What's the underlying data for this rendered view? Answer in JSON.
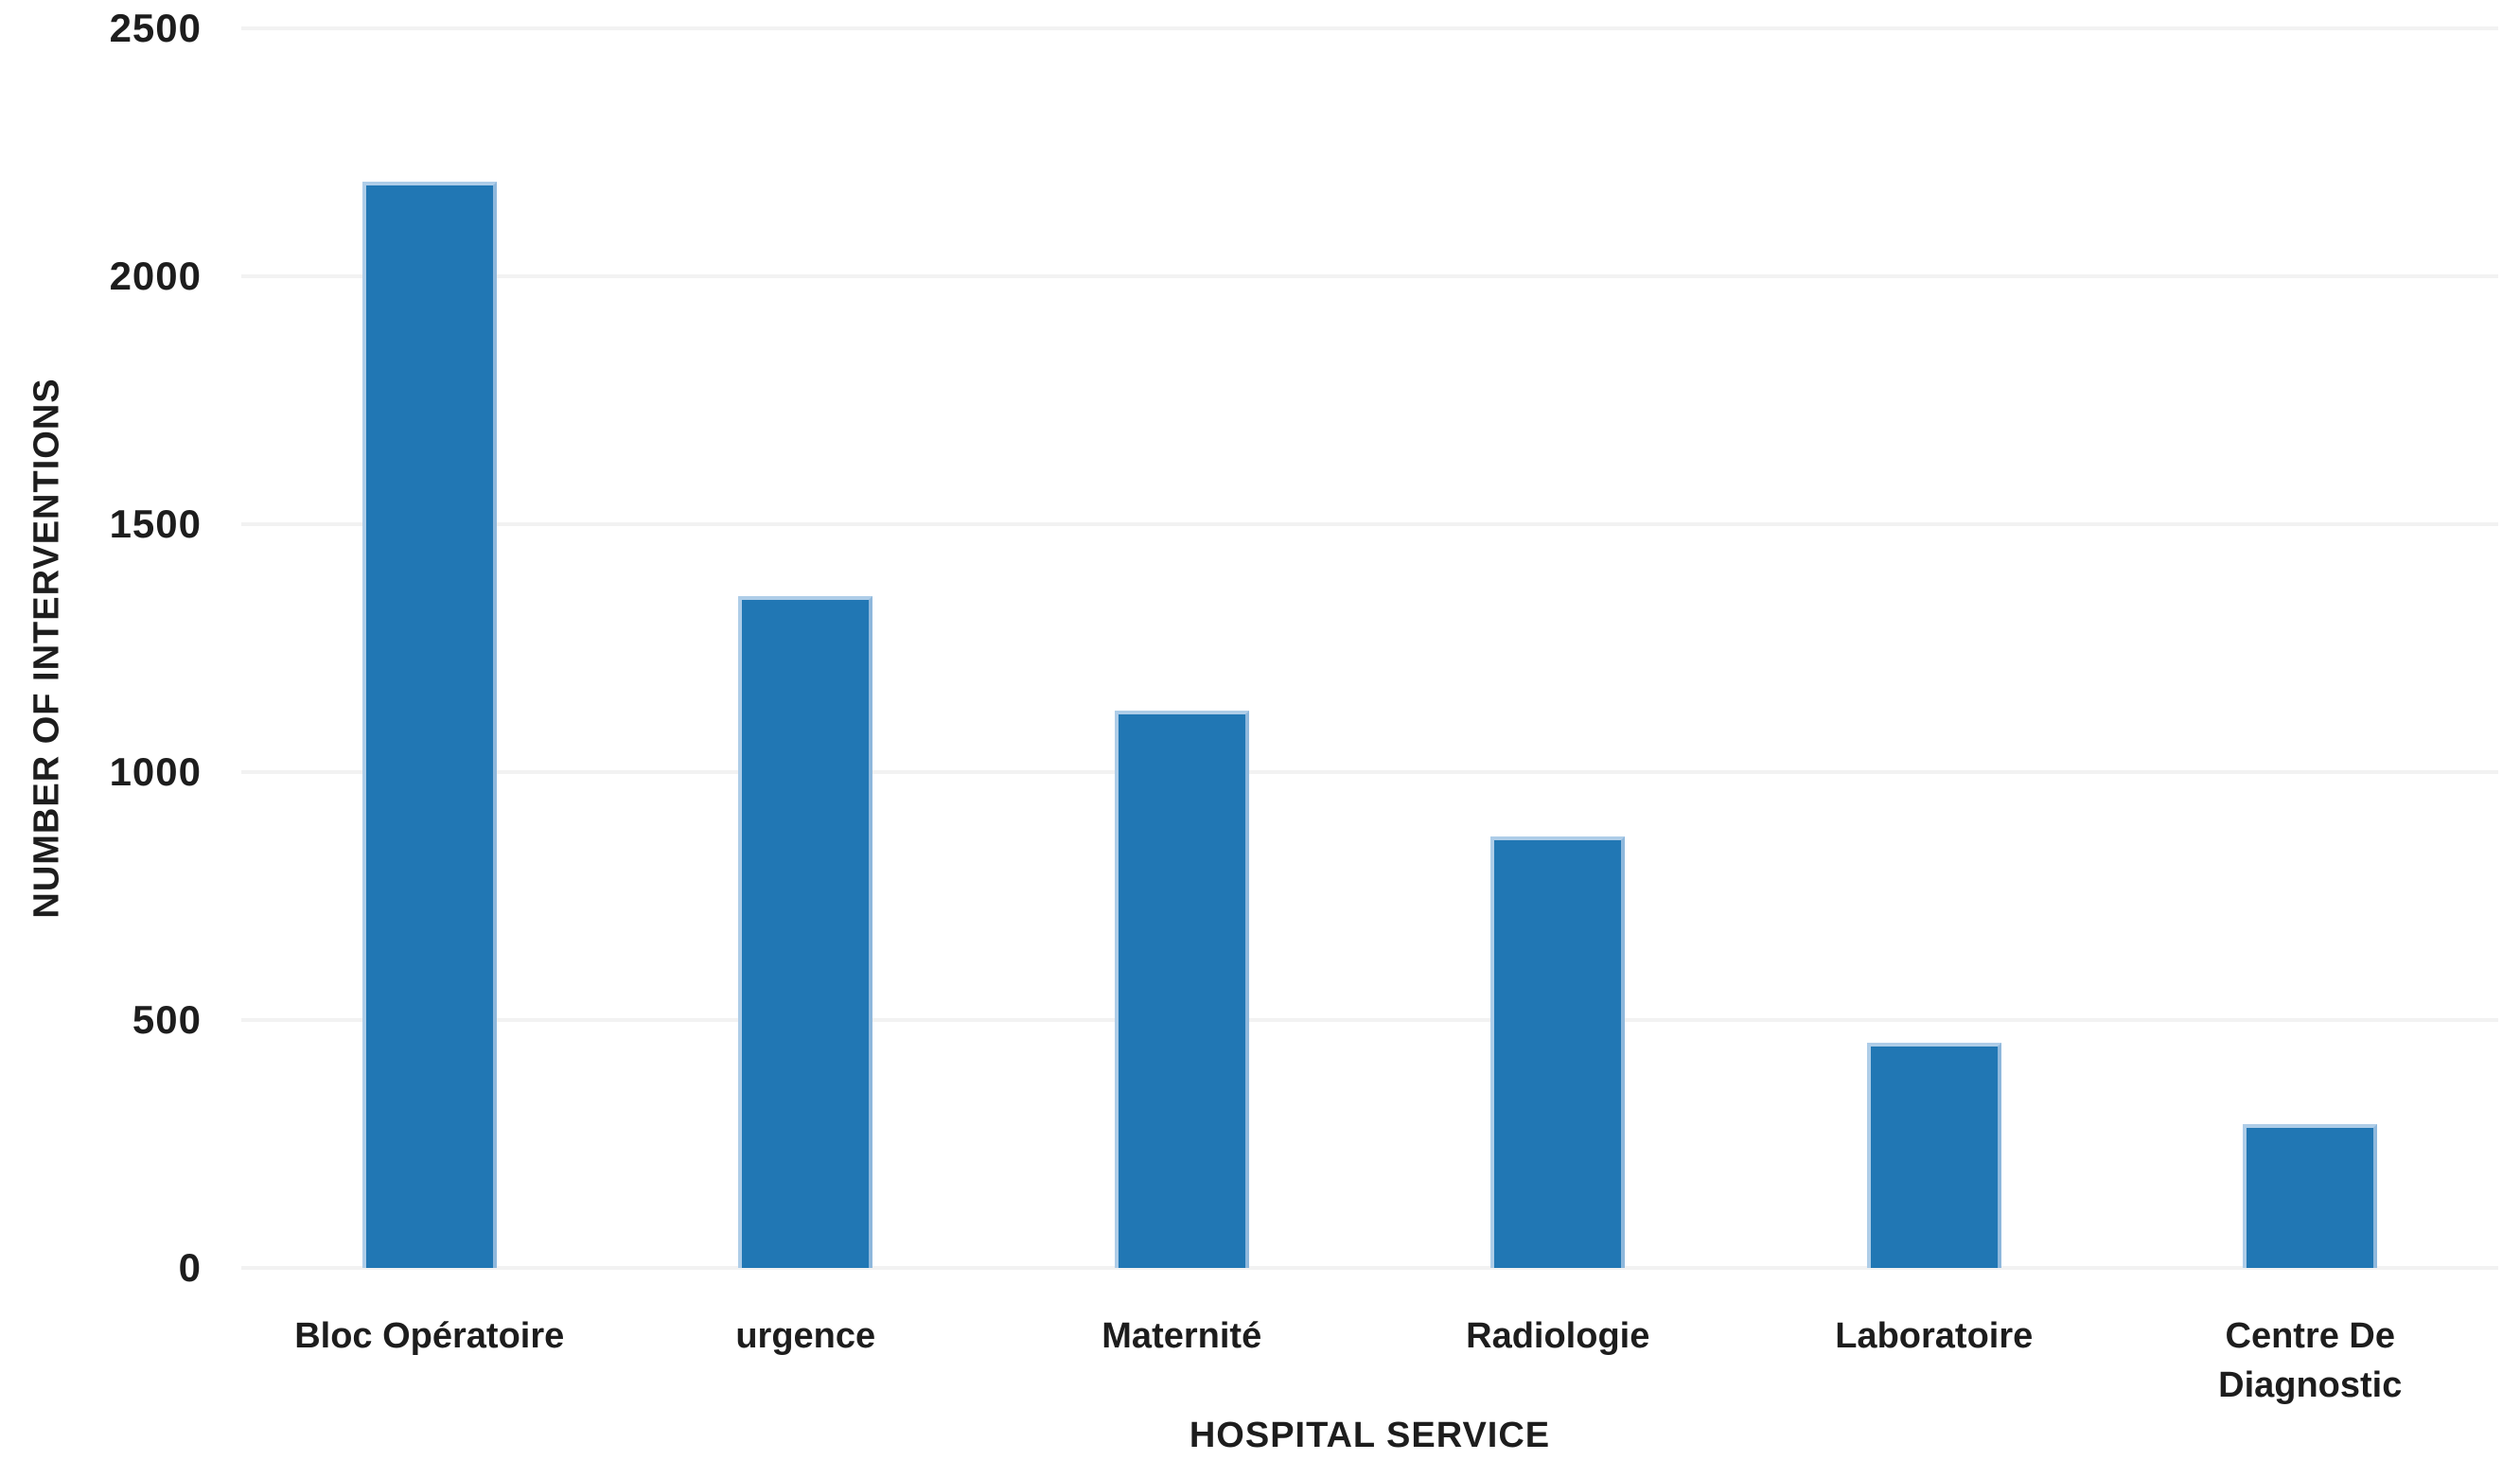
{
  "chart_data": {
    "type": "bar",
    "title": "",
    "xlabel": "HOSPITAL SERVICE",
    "ylabel": "NUMBER OF INTERVENTIONS",
    "categories": [
      "Bloc Opératoire",
      "urgence",
      "Maternité",
      "Radiologie",
      "Laboratoire",
      "Centre De Diagnostic"
    ],
    "values": [
      2190,
      1355,
      1125,
      870,
      455,
      290
    ],
    "ylim": [
      0,
      2500
    ],
    "yticks": [
      0,
      500,
      1000,
      1500,
      2000,
      2500
    ],
    "grid": true,
    "legend": false,
    "colors": {
      "bar_fill": "#2177b4",
      "bar_edge": "#aecde8",
      "gridline": "#f2f2f2",
      "text": "#1d1d1d",
      "background": "#ffffff"
    }
  }
}
